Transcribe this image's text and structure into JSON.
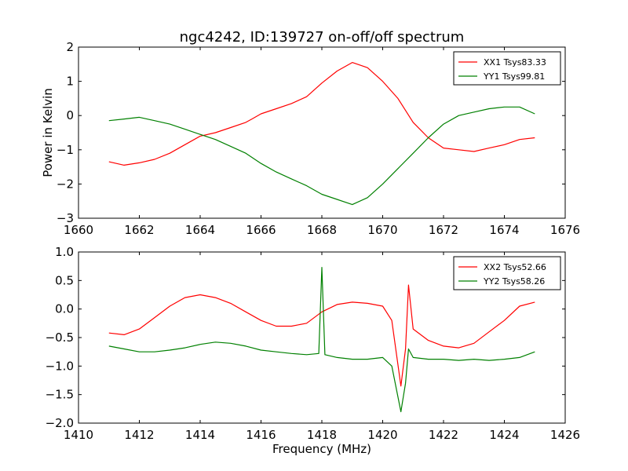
{
  "figure": {
    "title": "ngc4242, ID:139727 on-off/off spectrum",
    "ylabel": "Power in Kelvin",
    "xlabel": "Frequency (MHz)"
  },
  "chart_data": [
    {
      "type": "line",
      "xlim": [
        1660,
        1676
      ],
      "ylim": [
        -3,
        2
      ],
      "xticks": [
        1660,
        1662,
        1664,
        1666,
        1668,
        1670,
        1672,
        1674,
        1676
      ],
      "yticks": [
        -3,
        -2,
        -1,
        0,
        1,
        2
      ],
      "xtick_labels": [
        "1660",
        "1662",
        "1664",
        "1666",
        "1668",
        "1670",
        "1672",
        "1674",
        "1676"
      ],
      "ytick_labels": [
        "−3",
        "−2",
        "−1",
        "0",
        "1",
        "2"
      ],
      "legend_position": "top-right",
      "series": [
        {
          "name": "XX1 Tsys83.33",
          "color": "#ff0000",
          "x": [
            1661.0,
            1661.5,
            1662.0,
            1662.5,
            1663.0,
            1663.5,
            1664.0,
            1664.5,
            1665.0,
            1665.5,
            1665.7,
            1666.0,
            1666.5,
            1667.0,
            1667.5,
            1668.0,
            1668.5,
            1669.0,
            1669.5,
            1670.0,
            1670.5,
            1671.0,
            1671.5,
            1672.0,
            1672.5,
            1673.0,
            1673.5,
            1674.0,
            1674.5,
            1675.0
          ],
          "values": [
            -1.35,
            -1.45,
            -1.38,
            -1.28,
            -1.1,
            -0.85,
            -0.6,
            -0.5,
            -0.35,
            -0.2,
            -0.1,
            0.05,
            0.2,
            0.35,
            0.55,
            0.95,
            1.3,
            1.55,
            1.4,
            1.0,
            0.5,
            -0.2,
            -0.65,
            -0.95,
            -1.0,
            -1.05,
            -0.95,
            -0.85,
            -0.7,
            -0.65
          ]
        },
        {
          "name": "YY1 Tsys99.81",
          "color": "#008000",
          "x": [
            1661.0,
            1661.5,
            1662.0,
            1662.5,
            1663.0,
            1663.5,
            1664.0,
            1664.5,
            1665.0,
            1665.5,
            1666.0,
            1666.5,
            1667.0,
            1667.5,
            1668.0,
            1668.5,
            1669.0,
            1669.5,
            1670.0,
            1670.5,
            1671.0,
            1671.5,
            1672.0,
            1672.5,
            1673.0,
            1673.5,
            1674.0,
            1674.5,
            1675.0
          ],
          "values": [
            -0.15,
            -0.1,
            -0.05,
            -0.15,
            -0.25,
            -0.4,
            -0.55,
            -0.7,
            -0.9,
            -1.1,
            -1.4,
            -1.65,
            -1.85,
            -2.05,
            -2.3,
            -2.45,
            -2.6,
            -2.4,
            -2.0,
            -1.55,
            -1.1,
            -0.65,
            -0.25,
            0.0,
            0.1,
            0.2,
            0.25,
            0.25,
            0.05
          ]
        }
      ]
    },
    {
      "type": "line",
      "xlim": [
        1410,
        1426
      ],
      "ylim": [
        -2.0,
        1.0
      ],
      "xticks": [
        1410,
        1412,
        1414,
        1416,
        1418,
        1420,
        1422,
        1424,
        1426
      ],
      "yticks": [
        -2.0,
        -1.5,
        -1.0,
        -0.5,
        0.0,
        0.5,
        1.0
      ],
      "xtick_labels": [
        "1410",
        "1412",
        "1414",
        "1416",
        "1418",
        "1420",
        "1422",
        "1424",
        "1426"
      ],
      "ytick_labels": [
        "−2.0",
        "−1.5",
        "−1.0",
        "−0.5",
        "0.0",
        "0.5",
        "1.0"
      ],
      "legend_position": "top-right",
      "series": [
        {
          "name": "XX2 Tsys52.66",
          "color": "#ff0000",
          "x": [
            1411.0,
            1411.5,
            1412.0,
            1412.5,
            1413.0,
            1413.5,
            1414.0,
            1414.5,
            1415.0,
            1415.5,
            1416.0,
            1416.5,
            1417.0,
            1417.5,
            1418.0,
            1418.5,
            1419.0,
            1419.5,
            1420.0,
            1420.3,
            1420.6,
            1420.75,
            1420.85,
            1421.0,
            1421.5,
            1422.0,
            1422.5,
            1423.0,
            1423.5,
            1424.0,
            1424.5,
            1425.0
          ],
          "values": [
            -0.42,
            -0.45,
            -0.35,
            -0.15,
            0.05,
            0.2,
            0.25,
            0.2,
            0.1,
            -0.05,
            -0.2,
            -0.3,
            -0.3,
            -0.25,
            -0.05,
            0.08,
            0.12,
            0.1,
            0.05,
            -0.2,
            -1.35,
            -0.7,
            0.42,
            -0.35,
            -0.55,
            -0.65,
            -0.68,
            -0.6,
            -0.4,
            -0.2,
            0.05,
            0.12
          ]
        },
        {
          "name": "YY2 Tsys58.26",
          "color": "#008000",
          "x": [
            1411.0,
            1411.5,
            1412.0,
            1412.5,
            1413.0,
            1413.5,
            1414.0,
            1414.5,
            1415.0,
            1415.5,
            1416.0,
            1416.5,
            1417.0,
            1417.5,
            1417.9,
            1418.0,
            1418.1,
            1418.5,
            1419.0,
            1419.5,
            1420.0,
            1420.3,
            1420.6,
            1420.75,
            1420.85,
            1421.0,
            1421.5,
            1422.0,
            1422.5,
            1423.0,
            1423.5,
            1424.0,
            1424.5,
            1425.0
          ],
          "values": [
            -0.65,
            -0.7,
            -0.75,
            -0.75,
            -0.72,
            -0.68,
            -0.62,
            -0.58,
            -0.6,
            -0.65,
            -0.72,
            -0.75,
            -0.78,
            -0.8,
            -0.78,
            0.73,
            -0.8,
            -0.85,
            -0.88,
            -0.88,
            -0.85,
            -1.0,
            -1.8,
            -1.3,
            -0.7,
            -0.85,
            -0.88,
            -0.88,
            -0.9,
            -0.88,
            -0.9,
            -0.88,
            -0.85,
            -0.75
          ]
        }
      ]
    }
  ]
}
